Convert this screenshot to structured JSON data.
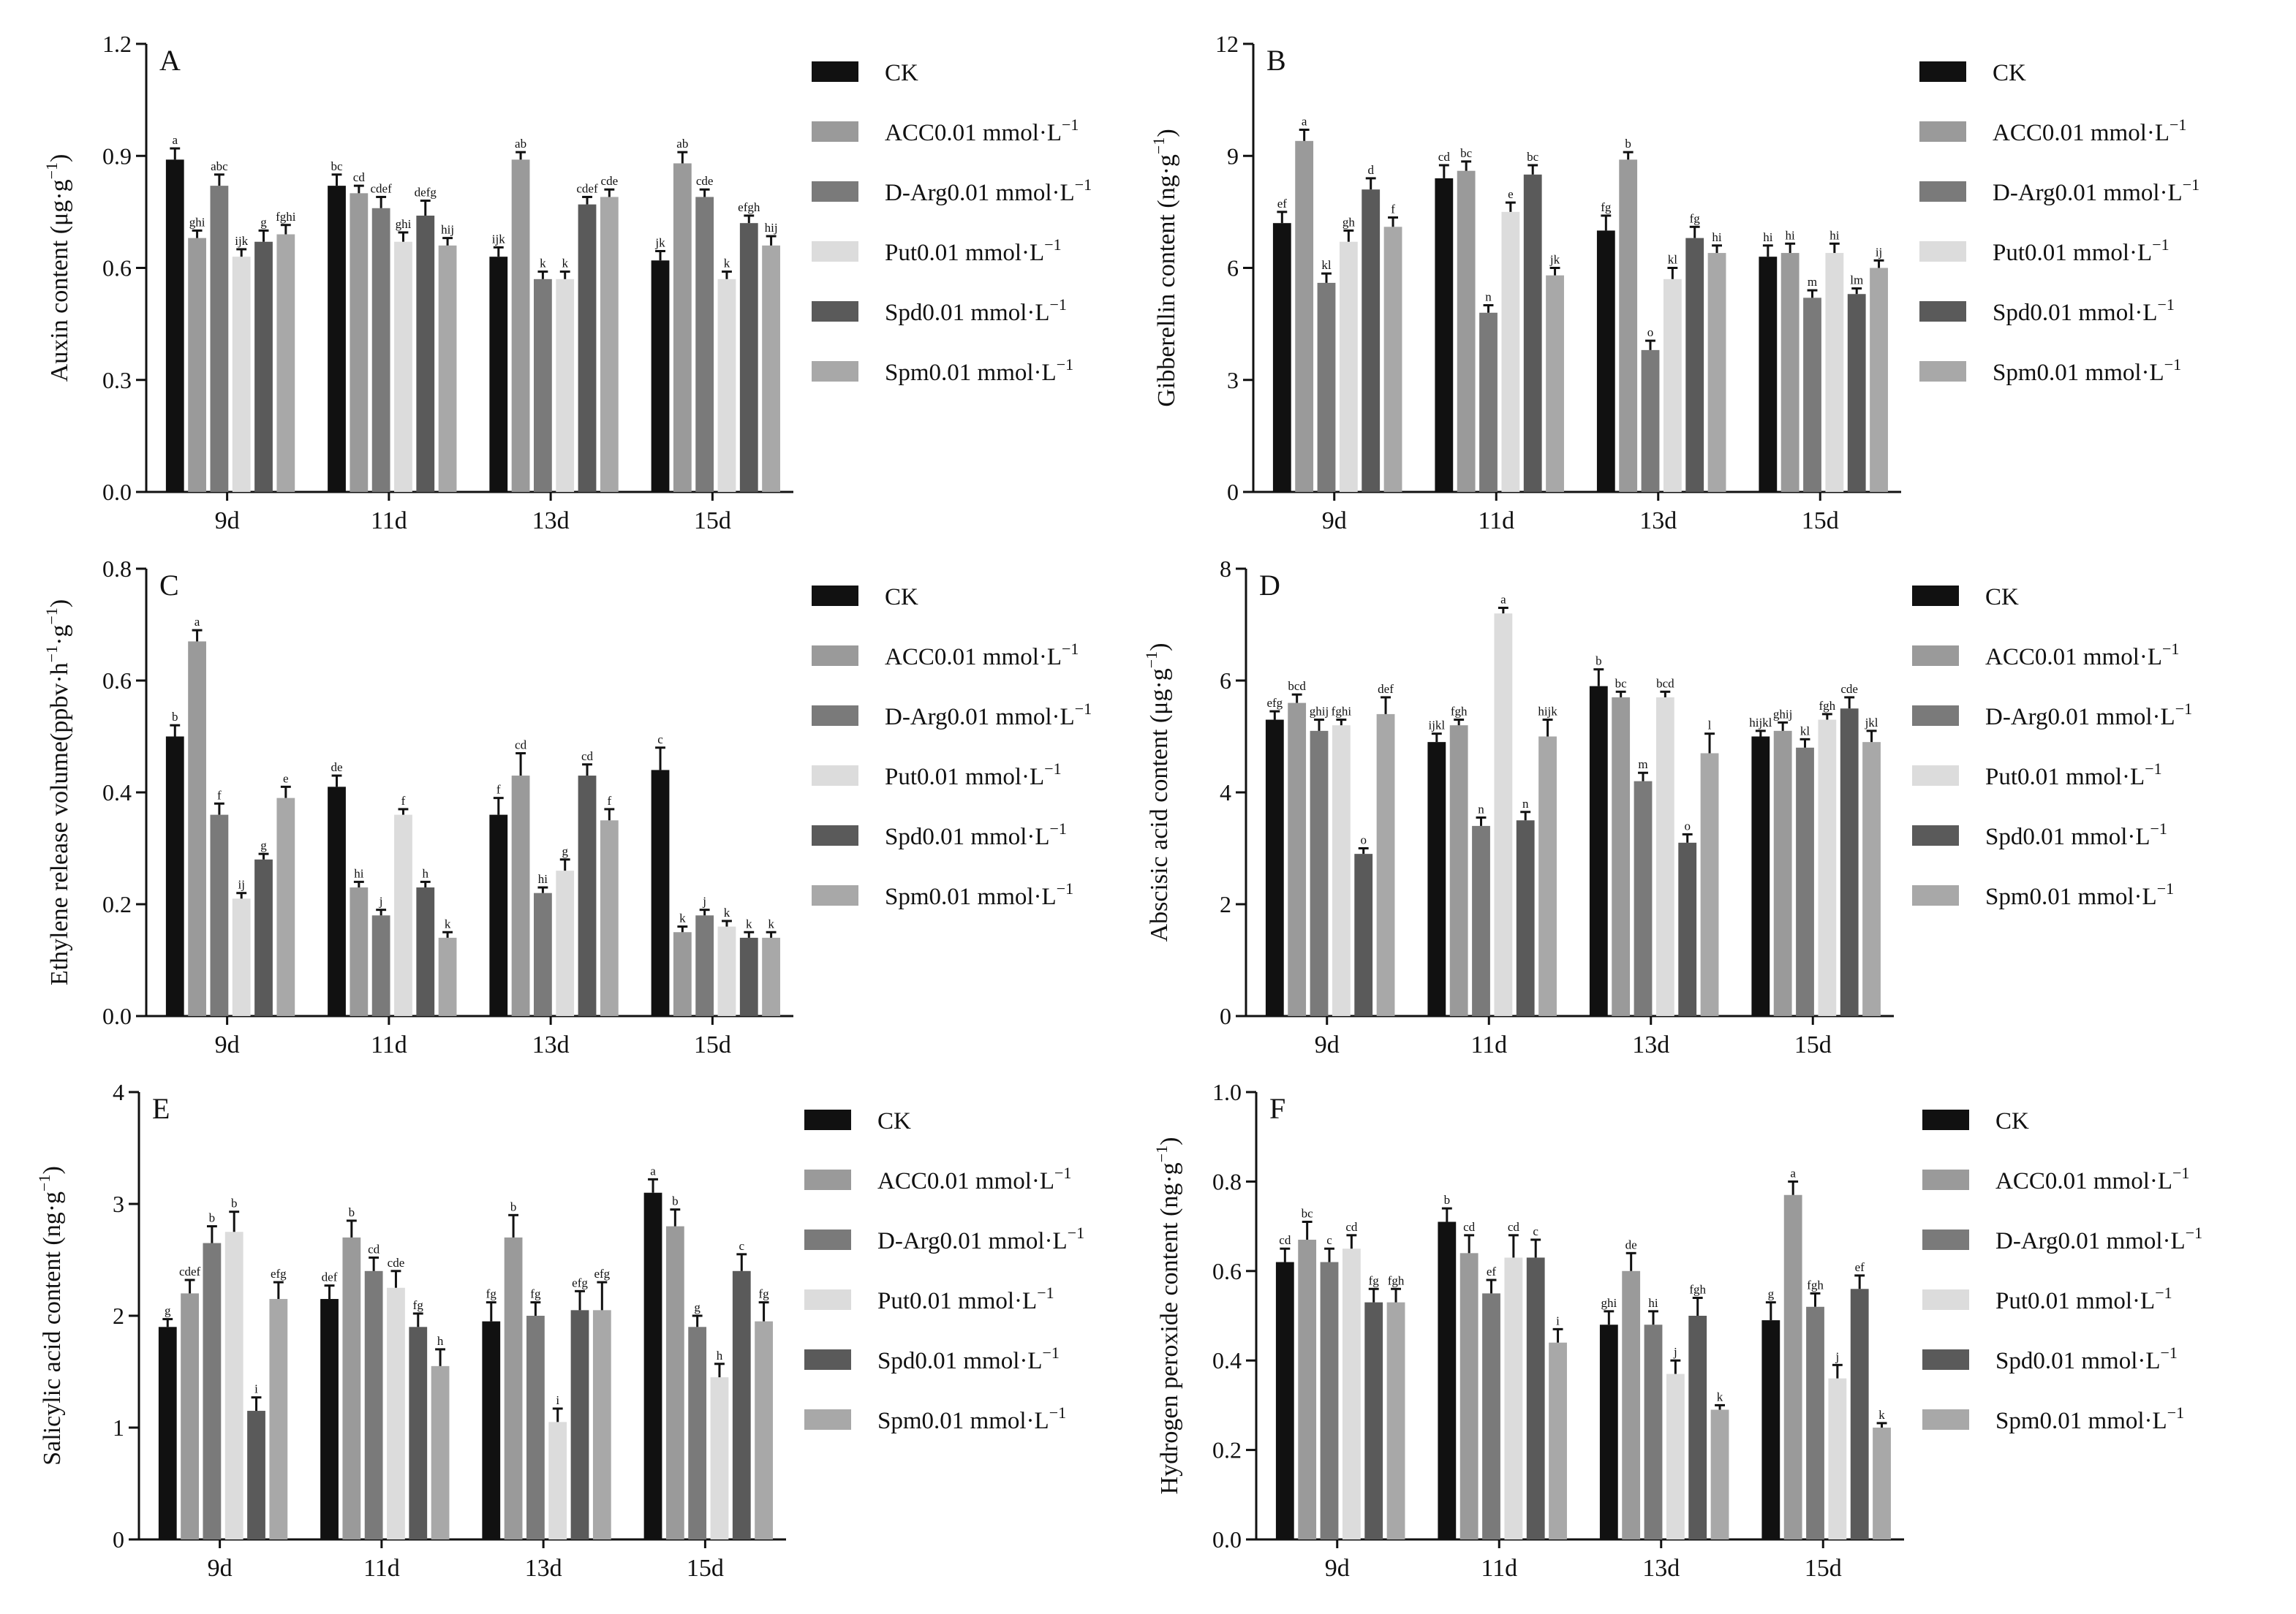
{
  "colors": [
    "#111111",
    "#9a9a9a",
    "#7a7a7a",
    "#dcdcdc",
    "#5a5a5a",
    "#a8a8a8"
  ],
  "legend": [
    {
      "main": "CK",
      "unit": "",
      "exp": ""
    },
    {
      "main": "ACC0.01 mmol·L",
      "unit": "",
      "exp": "−1"
    },
    {
      "main": "D-Arg0.01 mmol·L",
      "unit": "",
      "exp": "−1"
    },
    {
      "main": "Put0.01 mmol·L",
      "unit": "",
      "exp": "−1"
    },
    {
      "main": "Spd0.01 mmol·L",
      "unit": "",
      "exp": "−1"
    },
    {
      "main": "Spm0.01 mmol·L",
      "unit": "",
      "exp": "−1"
    }
  ],
  "chart_data": [
    {
      "type": "bar",
      "label": "A",
      "ylabel": "Auxin content (μg·g",
      "ylabel_exp": "−1",
      "ylabel_end": ")",
      "categories": [
        "9d",
        "11d",
        "13d",
        "15d"
      ],
      "ylim": [
        0,
        1.2
      ],
      "yticks": [
        "0.0",
        "0.3",
        "0.6",
        "0.9",
        "1.2"
      ],
      "series": [
        {
          "name": "CK",
          "values": [
            0.89,
            0.82,
            0.63,
            0.62
          ],
          "err": [
            0.03,
            0.03,
            0.025,
            0.025
          ],
          "sig": [
            "a",
            "bc",
            "ijk",
            "jk"
          ]
        },
        {
          "name": "ACC0.01 mmol·L−1",
          "values": [
            0.68,
            0.8,
            0.89,
            0.88
          ],
          "err": [
            0.02,
            0.02,
            0.02,
            0.03
          ],
          "sig": [
            "ghi",
            "cd",
            "ab",
            "ab"
          ]
        },
        {
          "name": "D-Arg0.01 mmol·L−1",
          "values": [
            0.82,
            0.76,
            0.57,
            0.79
          ],
          "err": [
            0.03,
            0.03,
            0.02,
            0.02
          ],
          "sig": [
            "abc",
            "cdef",
            "k",
            "cde"
          ]
        },
        {
          "name": "Put0.01 mmol·L−1",
          "values": [
            0.63,
            0.67,
            0.57,
            0.57
          ],
          "err": [
            0.02,
            0.025,
            0.02,
            0.02
          ],
          "sig": [
            "ijk",
            "ghi",
            "k",
            "k"
          ]
        },
        {
          "name": "Spd0.01 mmol·L−1",
          "values": [
            0.67,
            0.74,
            0.77,
            0.72
          ],
          "err": [
            0.03,
            0.04,
            0.02,
            0.02
          ],
          "sig": [
            "g",
            "defg",
            "cdef",
            "efgh"
          ]
        },
        {
          "name": "Spm0.01 mmol·L−1",
          "values": [
            0.69,
            0.66,
            0.79,
            0.66
          ],
          "err": [
            0.025,
            0.02,
            0.02,
            0.025
          ],
          "sig": [
            "fghi",
            "hij",
            "cde",
            "hij"
          ]
        }
      ]
    },
    {
      "type": "bar",
      "label": "B",
      "ylabel": "Gibberellin content (ng·g",
      "ylabel_exp": "−1",
      "ylabel_end": ")",
      "categories": [
        "9d",
        "11d",
        "13d",
        "15d"
      ],
      "ylim": [
        0,
        12
      ],
      "yticks": [
        "0",
        "3",
        "6",
        "9",
        "12"
      ],
      "series": [
        {
          "name": "CK",
          "values": [
            7.2,
            8.4,
            7.0,
            6.3
          ],
          "err": [
            0.3,
            0.35,
            0.4,
            0.3
          ],
          "sig": [
            "ef",
            "cd",
            "fg",
            "hi"
          ]
        },
        {
          "name": "ACC0.01 mmol·L−1",
          "values": [
            9.4,
            8.6,
            8.9,
            6.4
          ],
          "err": [
            0.3,
            0.25,
            0.2,
            0.25
          ],
          "sig": [
            "a",
            "bc",
            "b",
            "hi"
          ]
        },
        {
          "name": "D-Arg0.01 mmol·L−1",
          "values": [
            5.6,
            4.8,
            3.8,
            5.2
          ],
          "err": [
            0.25,
            0.2,
            0.25,
            0.2
          ],
          "sig": [
            "kl",
            "n",
            "o",
            "m"
          ]
        },
        {
          "name": "Put0.01 mmol·L−1",
          "values": [
            6.7,
            7.5,
            5.7,
            6.4
          ],
          "err": [
            0.3,
            0.25,
            0.3,
            0.25
          ],
          "sig": [
            "gh",
            "e",
            "kl",
            "hi"
          ]
        },
        {
          "name": "Spd0.01 mmol·L−1",
          "values": [
            8.1,
            8.5,
            6.8,
            5.3
          ],
          "err": [
            0.3,
            0.25,
            0.3,
            0.15
          ],
          "sig": [
            "d",
            "bc",
            "fg",
            "lm"
          ]
        },
        {
          "name": "Spm0.01 mmol·L−1",
          "values": [
            7.1,
            5.8,
            6.4,
            6.0
          ],
          "err": [
            0.25,
            0.2,
            0.2,
            0.2
          ],
          "sig": [
            "f",
            "jk",
            "hi",
            "ij"
          ]
        }
      ]
    },
    {
      "type": "bar",
      "label": "C",
      "ylabel": "Ethylene release volume(ppbv·h",
      "ylabel_exp": "−1",
      "ylabel_end": "·g",
      "ylabel_exp2": "−1",
      "ylabel_end2": ")",
      "categories": [
        "9d",
        "11d",
        "13d",
        "15d"
      ],
      "ylim": [
        0,
        0.8
      ],
      "yticks": [
        "0.0",
        "0.2",
        "0.4",
        "0.6",
        "0.8"
      ],
      "series": [
        {
          "name": "CK",
          "values": [
            0.5,
            0.41,
            0.36,
            0.44
          ],
          "err": [
            0.02,
            0.02,
            0.03,
            0.04
          ],
          "sig": [
            "b",
            "de",
            "f",
            "c"
          ]
        },
        {
          "name": "ACC0.01 mmol·L−1",
          "values": [
            0.67,
            0.23,
            0.43,
            0.15
          ],
          "err": [
            0.02,
            0.01,
            0.04,
            0.01
          ],
          "sig": [
            "a",
            "hi",
            "cd",
            "k"
          ]
        },
        {
          "name": "D-Arg0.01 mmol·L−1",
          "values": [
            0.36,
            0.18,
            0.22,
            0.18
          ],
          "err": [
            0.02,
            0.01,
            0.01,
            0.01
          ],
          "sig": [
            "f",
            "j",
            "hi",
            "j"
          ]
        },
        {
          "name": "Put0.01 mmol·L−1",
          "values": [
            0.21,
            0.36,
            0.26,
            0.16
          ],
          "err": [
            0.01,
            0.01,
            0.02,
            0.01
          ],
          "sig": [
            "ij",
            "f",
            "g",
            "k"
          ]
        },
        {
          "name": "Spd0.01 mmol·L−1",
          "values": [
            0.28,
            0.23,
            0.43,
            0.14
          ],
          "err": [
            0.01,
            0.01,
            0.02,
            0.01
          ],
          "sig": [
            "g",
            "h",
            "cd",
            "k"
          ]
        },
        {
          "name": "Spm0.01 mmol·L−1",
          "values": [
            0.39,
            0.14,
            0.35,
            0.14
          ],
          "err": [
            0.02,
            0.01,
            0.02,
            0.01
          ],
          "sig": [
            "e",
            "k",
            "f",
            "k"
          ]
        }
      ]
    },
    {
      "type": "bar",
      "label": "D",
      "ylabel": "Abscisic acid content (μg·g",
      "ylabel_exp": "−1",
      "ylabel_end": ")",
      "categories": [
        "9d",
        "11d",
        "13d",
        "15d"
      ],
      "ylim": [
        0,
        8
      ],
      "yticks": [
        "0",
        "2",
        "4",
        "6",
        "8"
      ],
      "series": [
        {
          "name": "CK",
          "values": [
            5.3,
            4.9,
            5.9,
            5.0
          ],
          "err": [
            0.15,
            0.15,
            0.3,
            0.1
          ],
          "sig": [
            "efg",
            "ijkl",
            "b",
            "hijkl"
          ]
        },
        {
          "name": "ACC0.01 mmol·L−1",
          "values": [
            5.6,
            5.2,
            5.7,
            5.1
          ],
          "err": [
            0.15,
            0.1,
            0.1,
            0.15
          ],
          "sig": [
            "bcd",
            "fgh",
            "bc",
            "ghij"
          ]
        },
        {
          "name": "D-Arg0.01 mmol·L−1",
          "values": [
            5.1,
            3.4,
            4.2,
            4.8
          ],
          "err": [
            0.2,
            0.15,
            0.15,
            0.15
          ],
          "sig": [
            "ghij",
            "n",
            "m",
            "kl"
          ]
        },
        {
          "name": "Put0.01 mmol·L−1",
          "values": [
            5.2,
            7.2,
            5.7,
            5.3
          ],
          "err": [
            0.1,
            0.1,
            0.1,
            0.1
          ],
          "sig": [
            "fghi",
            "a",
            "bcd",
            "fgh"
          ]
        },
        {
          "name": "Spd0.01 mmol·L−1",
          "values": [
            2.9,
            3.5,
            3.1,
            5.5
          ],
          "err": [
            0.1,
            0.15,
            0.15,
            0.2
          ],
          "sig": [
            "o",
            "n",
            "o",
            "cde"
          ]
        },
        {
          "name": "Spm0.01 mmol·L−1",
          "values": [
            5.4,
            5.0,
            4.7,
            4.9
          ],
          "err": [
            0.3,
            0.3,
            0.35,
            0.2
          ],
          "sig": [
            "def",
            "hijk",
            "l",
            "jkl"
          ]
        }
      ]
    },
    {
      "type": "bar",
      "label": "E",
      "ylabel": "Salicylic acid content (ng·g",
      "ylabel_exp": "−1",
      "ylabel_end": ")",
      "categories": [
        "9d",
        "11d",
        "13d",
        "15d"
      ],
      "ylim": [
        0,
        4
      ],
      "yticks": [
        "0",
        "1",
        "2",
        "3",
        "4"
      ],
      "series": [
        {
          "name": "CK",
          "values": [
            1.9,
            2.15,
            1.95,
            3.1
          ],
          "err": [
            0.07,
            0.12,
            0.17,
            0.12
          ],
          "sig": [
            "g",
            "def",
            "fg",
            "a"
          ]
        },
        {
          "name": "ACC0.01 mmol·L−1",
          "values": [
            2.2,
            2.7,
            2.7,
            2.8
          ],
          "err": [
            0.12,
            0.15,
            0.2,
            0.15
          ],
          "sig": [
            "cdef",
            "b",
            "b",
            "b"
          ]
        },
        {
          "name": "D-Arg0.01 mmol·L−1",
          "values": [
            2.65,
            2.4,
            2.0,
            1.9
          ],
          "err": [
            0.15,
            0.12,
            0.12,
            0.1
          ],
          "sig": [
            "b",
            "cd",
            "fg",
            "g"
          ]
        },
        {
          "name": "Put0.01 mmol·L−1",
          "values": [
            2.75,
            2.25,
            1.05,
            1.45
          ],
          "err": [
            0.18,
            0.15,
            0.12,
            0.12
          ],
          "sig": [
            "b",
            "cde",
            "i",
            "h"
          ]
        },
        {
          "name": "Spd0.01 mmol·L−1",
          "values": [
            1.15,
            1.9,
            2.05,
            2.4
          ],
          "err": [
            0.12,
            0.12,
            0.17,
            0.15
          ],
          "sig": [
            "i",
            "fg",
            "efg",
            "c"
          ]
        },
        {
          "name": "Spm0.01 mmol·L−1",
          "values": [
            2.15,
            1.55,
            2.05,
            1.95
          ],
          "err": [
            0.15,
            0.15,
            0.25,
            0.17
          ],
          "sig": [
            "efg",
            "h",
            "efg",
            "fg"
          ]
        }
      ]
    },
    {
      "type": "bar",
      "label": "F",
      "ylabel": "Hydrogen peroxide content (ng·g",
      "ylabel_exp": "−1",
      "ylabel_end": ")",
      "categories": [
        "9d",
        "11d",
        "13d",
        "15d"
      ],
      "ylim": [
        0,
        1.0
      ],
      "yticks": [
        "0.0",
        "0.2",
        "0.4",
        "0.6",
        "0.8",
        "1.0"
      ],
      "series": [
        {
          "name": "CK",
          "values": [
            0.62,
            0.71,
            0.48,
            0.49
          ],
          "err": [
            0.03,
            0.03,
            0.03,
            0.04
          ],
          "sig": [
            "cd",
            "b",
            "ghi",
            "g"
          ]
        },
        {
          "name": "ACC0.01 mmol·L−1",
          "values": [
            0.67,
            0.64,
            0.6,
            0.77
          ],
          "err": [
            0.04,
            0.04,
            0.04,
            0.03
          ],
          "sig": [
            "bc",
            "cd",
            "de",
            "a"
          ]
        },
        {
          "name": "D-Arg0.01 mmol·L−1",
          "values": [
            0.62,
            0.55,
            0.48,
            0.52
          ],
          "err": [
            0.03,
            0.03,
            0.03,
            0.03
          ],
          "sig": [
            "c",
            "ef",
            "hi",
            "fgh"
          ]
        },
        {
          "name": "Put0.01 mmol·L−1",
          "values": [
            0.65,
            0.63,
            0.37,
            0.36
          ],
          "err": [
            0.03,
            0.05,
            0.03,
            0.03
          ],
          "sig": [
            "cd",
            "cd",
            "j",
            "j"
          ]
        },
        {
          "name": "Spd0.01 mmol·L−1",
          "values": [
            0.53,
            0.63,
            0.5,
            0.56
          ],
          "err": [
            0.03,
            0.04,
            0.04,
            0.03
          ],
          "sig": [
            "fg",
            "c",
            "fgh",
            "ef"
          ]
        },
        {
          "name": "Spm0.01 mmol·L−1",
          "values": [
            0.53,
            0.44,
            0.29,
            0.25
          ],
          "err": [
            0.03,
            0.03,
            0.01,
            0.01
          ],
          "sig": [
            "fgh",
            "i",
            "k",
            "k"
          ]
        }
      ]
    }
  ]
}
